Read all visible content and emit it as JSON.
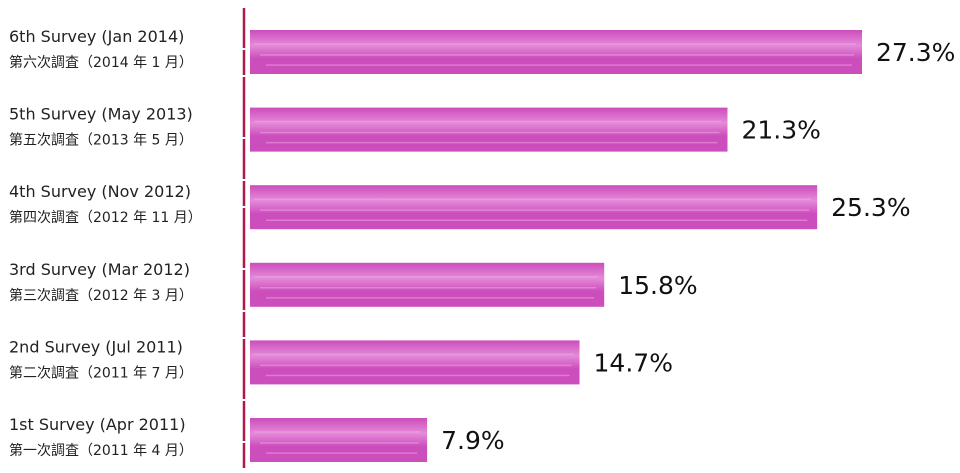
{
  "chart_data": {
    "type": "bar",
    "orientation": "horizontal",
    "categories": [
      {
        "en": "6th Survey (Jan 2014)",
        "jp": "第六次調査（2014 年 1 月）"
      },
      {
        "en": "5th Survey (May 2013)",
        "jp": "第五次調査（2013 年 5 月）"
      },
      {
        "en": "4th Survey (Nov 2012)",
        "jp": "第四次調査（2012 年 11 月）"
      },
      {
        "en": "3rd Survey (Mar 2012)",
        "jp": "第三次調査（2012 年 3 月）"
      },
      {
        "en": "2nd Survey (Jul 2011)",
        "jp": "第二次調査（2011 年 7 月）"
      },
      {
        "en": "1st Survey (Apr 2011)",
        "jp": "第一次調査（2011 年 4 月）"
      }
    ],
    "values": [
      27.3,
      21.3,
      25.3,
      15.8,
      14.7,
      7.9
    ],
    "value_labels": [
      "27.3%",
      "21.3%",
      "25.3%",
      "15.8%",
      "14.7%",
      "7.9%"
    ],
    "xlim": [
      0,
      27.3
    ],
    "grid": false,
    "legend": "none",
    "colors": {
      "bar": "#cc4dbc",
      "bar_light": "#e48ad8",
      "axis": "#b0174a"
    }
  }
}
